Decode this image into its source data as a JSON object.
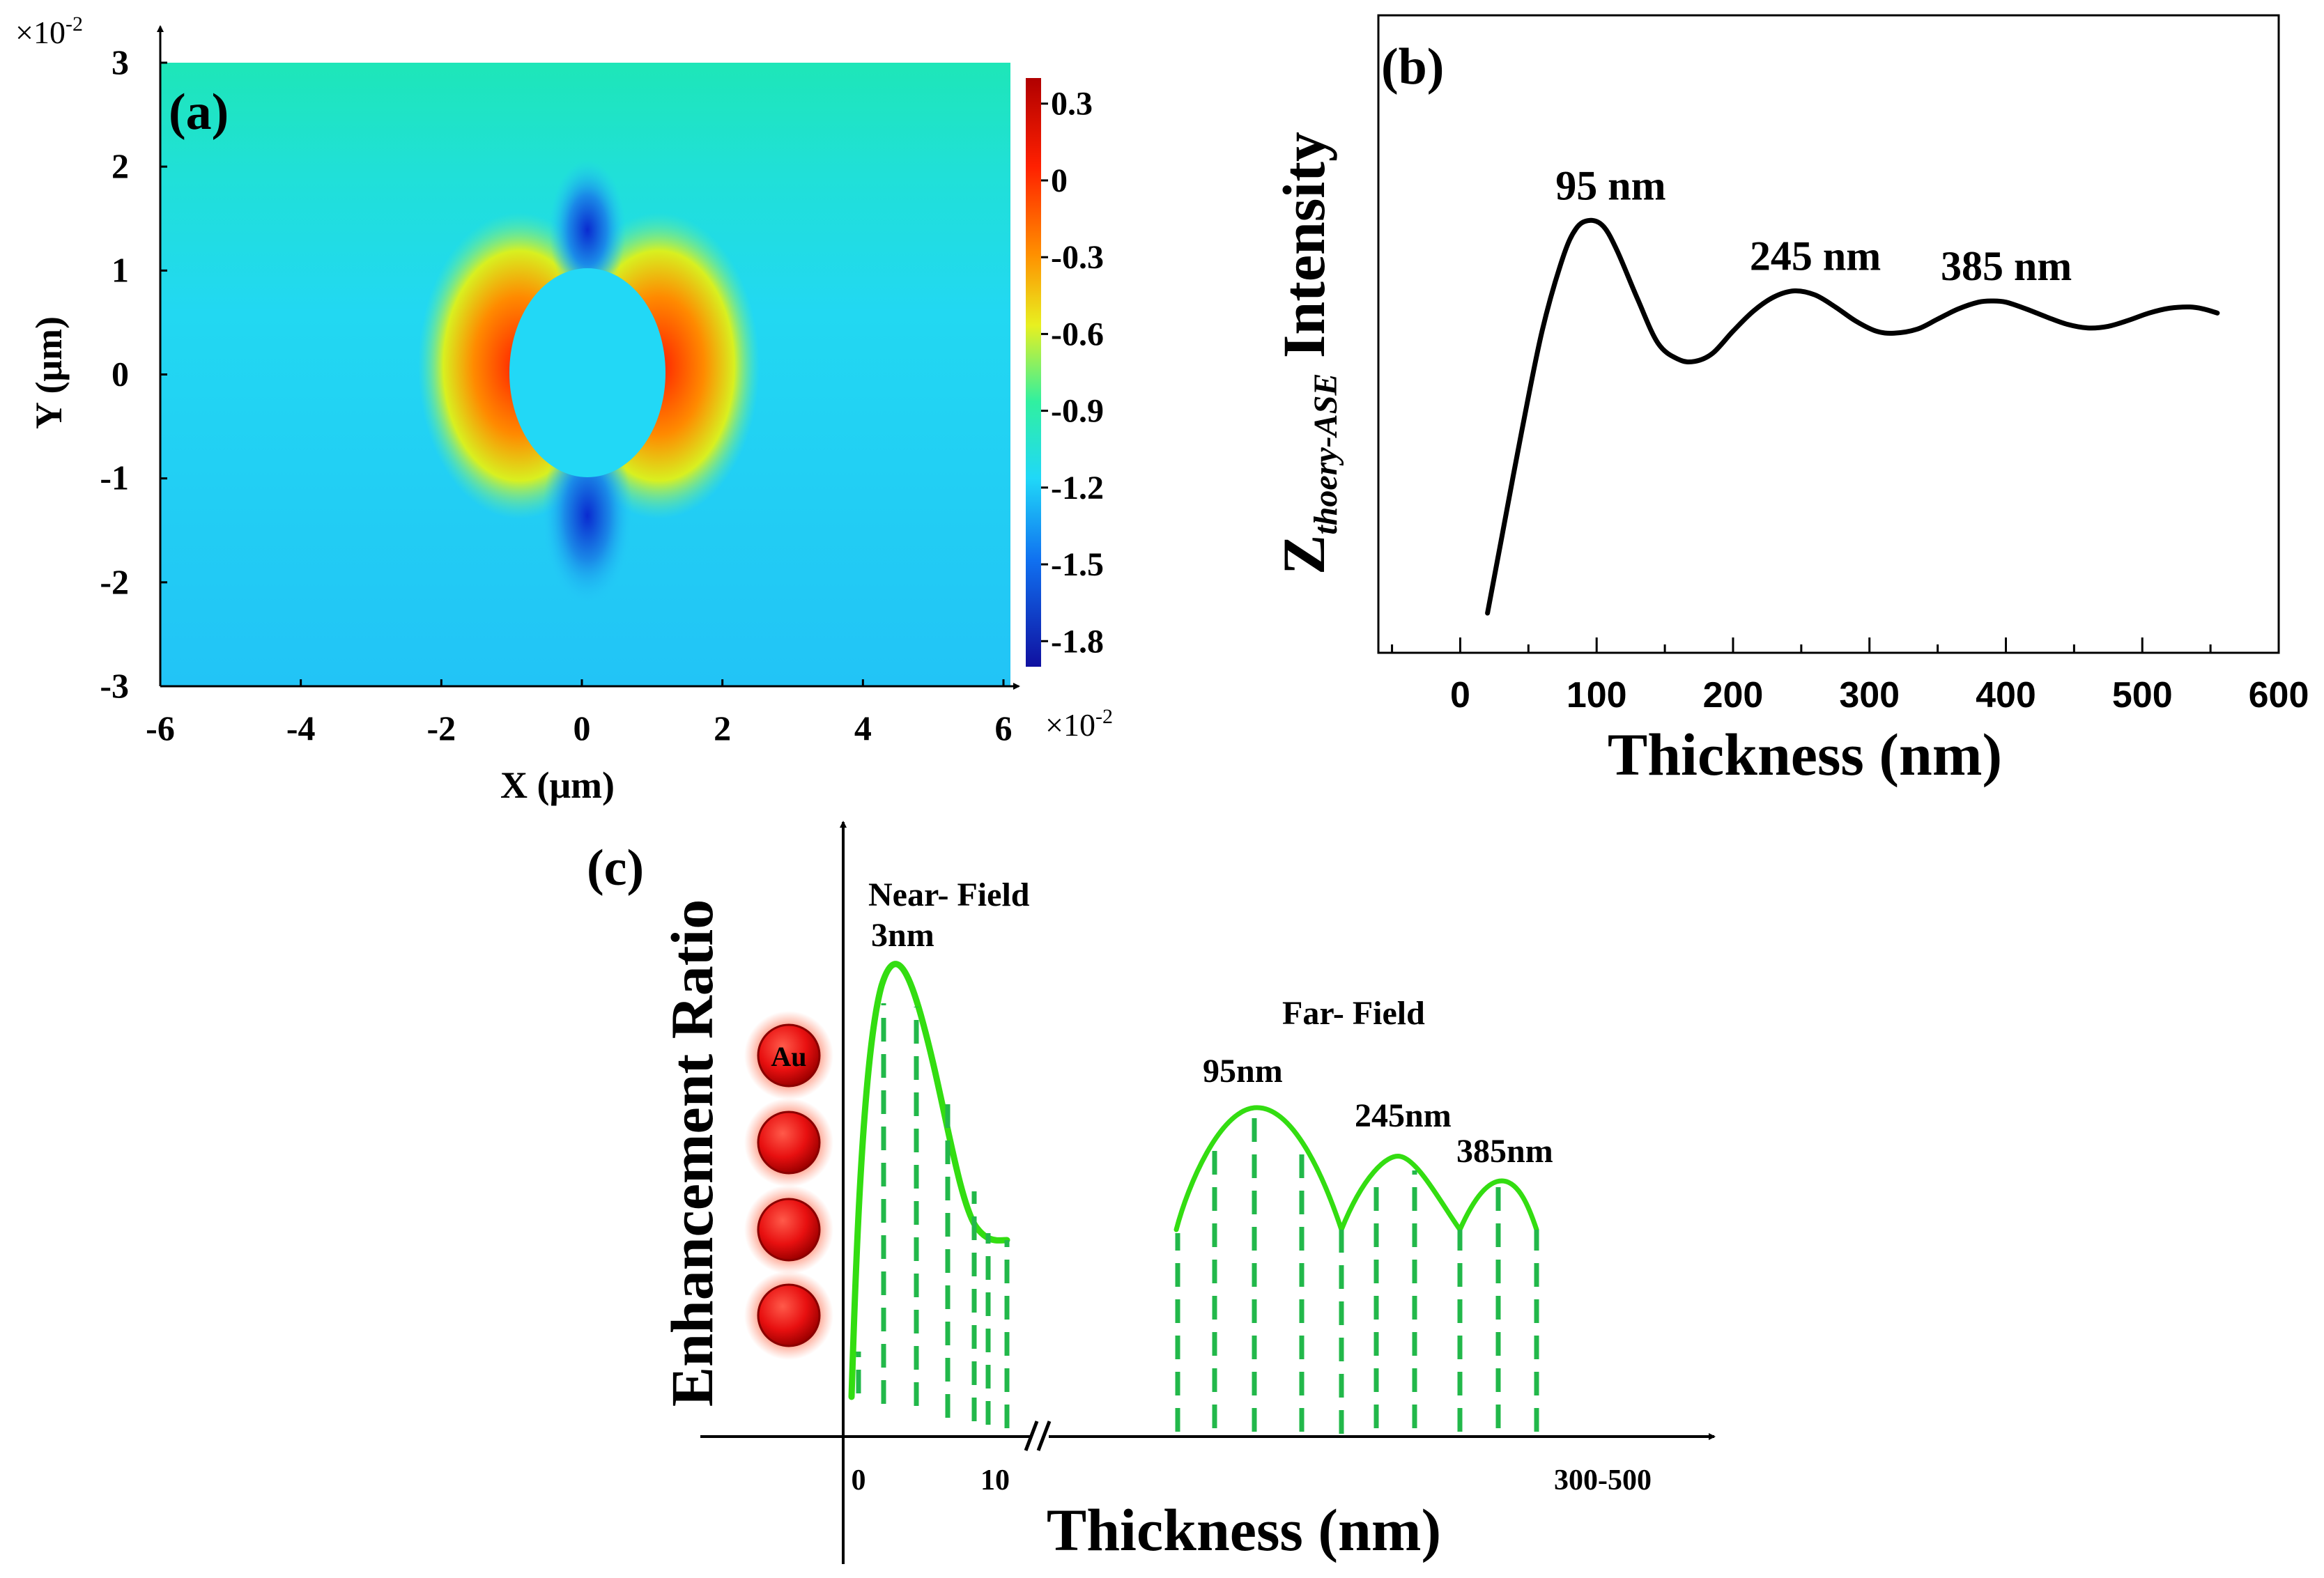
{
  "colors": {
    "field_bg": "#1ee6c0",
    "field_main": "#22d4ff",
    "curve_b": "#000000",
    "green": "#22dd22",
    "dash": "#22b84a",
    "au": "#e00000"
  },
  "chart_data": [
    {
      "panel": "(a)",
      "type": "heatmap",
      "xlabel": "X (μm)",
      "ylabel": "Y (μm)",
      "x_multiplier": "×10",
      "x_multiplier_exp": "-2",
      "y_multiplier": "×10",
      "y_multiplier_exp": "-2",
      "x_ticks": [
        "-6",
        "-4",
        "-2",
        "0",
        "2",
        "4",
        "6"
      ],
      "y_ticks": [
        "3",
        "2",
        "1",
        "0",
        "-1",
        "-2",
        "-3"
      ],
      "xlim": [
        -6,
        6
      ],
      "ylim": [
        -3,
        3
      ],
      "colorbar": {
        "ticks": [
          "0.3",
          "0",
          "-0.3",
          "-0.6",
          "-0.9",
          "-1.2",
          "-1.5",
          "-1.8"
        ],
        "range": [
          -1.9,
          0.4
        ],
        "multiplier": "×10",
        "multiplier_exp": "-2"
      }
    },
    {
      "panel": "(b)",
      "type": "line",
      "xlabel": "Thickness (nm)",
      "ylabel_main": "Z",
      "ylabel_sub": "thoery-ASE",
      "ylabel_rest": " Intensity",
      "xlim": [
        -60,
        600
      ],
      "x_ticks": [
        "0",
        "100",
        "200",
        "300",
        "400",
        "500",
        "600"
      ],
      "annotations": [
        "95 nm",
        "245 nm",
        "385 nm"
      ],
      "series": [
        {
          "x": [
            20,
            30,
            45,
            60,
            75,
            85,
            95,
            105,
            115,
            130,
            145,
            160,
            172,
            185,
            200,
            215,
            230,
            245,
            260,
            275,
            290,
            305,
            318,
            335,
            350,
            365,
            380,
            390,
            400,
            415,
            430,
            445,
            460,
            475,
            490,
            505,
            520,
            535,
            545,
            555
          ],
          "y": [
            0.0,
            0.18,
            0.45,
            0.7,
            0.88,
            0.955,
            0.975,
            0.96,
            0.9,
            0.78,
            0.67,
            0.63,
            0.625,
            0.645,
            0.7,
            0.75,
            0.785,
            0.8,
            0.79,
            0.76,
            0.725,
            0.7,
            0.695,
            0.705,
            0.73,
            0.755,
            0.772,
            0.775,
            0.772,
            0.755,
            0.735,
            0.717,
            0.708,
            0.712,
            0.727,
            0.745,
            0.757,
            0.76,
            0.755,
            0.745
          ]
        }
      ]
    },
    {
      "panel": "(c)",
      "type": "area",
      "xlabel": "Thickness (nm)",
      "ylabel": "Enhancement Ratio",
      "x_ticks": [
        "0",
        "10",
        "300-500"
      ],
      "near_field": {
        "title": "Near- Field",
        "peak_label": "3nm"
      },
      "far_field": {
        "title": "Far- Field",
        "peaks": [
          "95nm",
          "245nm",
          "385nm"
        ]
      },
      "particle_label": "Au"
    }
  ]
}
